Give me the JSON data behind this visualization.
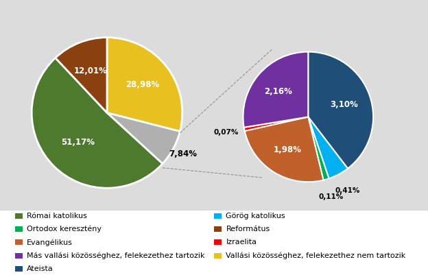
{
  "left_pie": {
    "labels": [
      "28,98%",
      "7,84%",
      "51,17%",
      "12,01%"
    ],
    "values": [
      28.98,
      7.84,
      51.17,
      12.01
    ],
    "colors": [
      "#e8c020",
      "#b0b0b0",
      "#4e7a2e",
      "#8b4010"
    ],
    "startangle": 90,
    "label_colors": [
      "white",
      "black",
      "white",
      "white"
    ],
    "label_r": [
      0.6,
      1.15,
      0.55,
      0.6
    ]
  },
  "right_pie": {
    "labels": [
      "3,10%",
      "0,41%",
      "0,11%",
      "1,98%",
      "0,07%",
      "2,16%"
    ],
    "values": [
      3.1,
      0.41,
      0.11,
      1.98,
      0.07,
      2.16
    ],
    "colors": [
      "#1f4e79",
      "#00b0f0",
      "#00b050",
      "#c0602a",
      "#ff0000",
      "#7030a0"
    ],
    "startangle": 90,
    "label_colors": [
      "white",
      "black",
      "black",
      "white",
      "black",
      "white"
    ],
    "label_r": [
      0.58,
      1.28,
      1.28,
      0.6,
      1.28,
      0.6
    ]
  },
  "legend_items": [
    {
      "label": "Római katolikus",
      "color": "#4e7a2e"
    },
    {
      "label": "Görög katolikus",
      "color": "#00b0f0"
    },
    {
      "label": "Ortodox keresztény",
      "color": "#00b050"
    },
    {
      "label": "Református",
      "color": "#8b4010"
    },
    {
      "label": "Evangélikus",
      "color": "#c0602a"
    },
    {
      "label": "Izraelita",
      "color": "#ff0000"
    },
    {
      "label": "Más vallási közösséghez, felekezethez tartozik",
      "color": "#7030a0"
    },
    {
      "label": "Vallási közösséghez, felekezethez nem tartozik",
      "color": "#e8c020"
    },
    {
      "label": "Ateista",
      "color": "#1f4e79"
    }
  ],
  "chart_bg_color": "#dcdcdc",
  "legend_bg_color": "#ffffff",
  "label_fontsize": 8.5,
  "legend_fontsize": 8.0
}
